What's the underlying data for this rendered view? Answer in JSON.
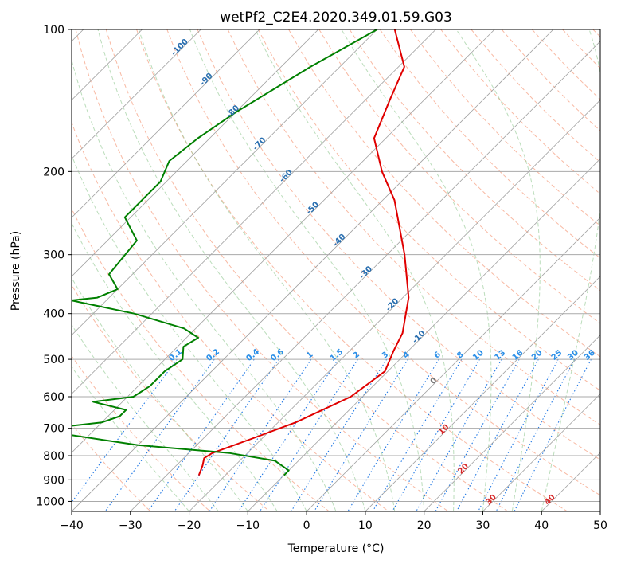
{
  "chart_data": {
    "type": "line",
    "title": "wetPf2_C2E4.2020.349.01.59.G03",
    "xlabel": "Temperature (°C)",
    "ylabel": "Pressure (hPa)",
    "xlim": [
      -40,
      50
    ],
    "ylim": [
      1050,
      100
    ],
    "y_scale": "log",
    "grid": true,
    "xticks": [
      -40,
      -30,
      -20,
      -10,
      0,
      10,
      20,
      30,
      40,
      50
    ],
    "yticks": [
      100,
      200,
      300,
      400,
      500,
      600,
      700,
      800,
      900,
      1000
    ],
    "series": [
      {
        "color": "#e00000",
        "pressure": [
          100,
          120,
          140,
          170,
          200,
          230,
          300,
          370,
          440,
          480,
          530,
          600,
          680,
          740,
          790,
          810,
          840,
          880
        ],
        "temperature": [
          -67,
          -59,
          -56,
          -52,
          -45,
          -38,
          -27,
          -19,
          -14,
          -12.5,
          -10.5,
          -12,
          -17,
          -22,
          -26,
          -26.5,
          -25.5,
          -24.5
        ]
      },
      {
        "color": "#008000",
        "pressure": [
          100,
          120,
          150,
          170,
          190,
          210,
          250,
          280,
          330,
          355,
          370,
          375,
          400,
          430,
          450,
          470,
          500,
          530,
          570,
          600,
          615,
          640,
          660,
          680,
          690,
          705,
          760,
          790,
          820,
          860,
          880
        ],
        "temperature": [
          -70,
          -75,
          -80,
          -82,
          -83,
          -81,
          -81,
          -75,
          -74,
          -70,
          -72,
          -76,
          -63,
          -52,
          -48,
          -49,
          -47,
          -48,
          -48,
          -49,
          -55,
          -48,
          -48,
          -50,
          -54,
          -60,
          -40,
          -23,
          -14,
          -10,
          -10
        ]
      }
    ],
    "isopleths": {
      "mixing_ratio_labels": [
        "0.1",
        "0.2",
        "0.4",
        "0.6",
        "1",
        "1.5",
        "2",
        "3",
        "4",
        "6",
        "8",
        "10",
        "13",
        "16",
        "20",
        "25",
        "30",
        "36"
      ],
      "dry_adiabat_labels": [
        "-100",
        "-90",
        "-80",
        "-70",
        "-60",
        "-50",
        "-40",
        "-30",
        "-20",
        "-10",
        "0",
        "10",
        "20",
        "30",
        "40"
      ]
    },
    "colors": {
      "grid": "#aaaaaa",
      "isotherm": "#a0a0a0",
      "dry_adiabat": "#f6a184",
      "moist_adiabat": "#8dc78d",
      "mixing_ratio": "#1f77e4",
      "label_blue": "#2a6fb0",
      "label_red": "#d62728",
      "mixing_label": "#2b8fe8"
    }
  }
}
